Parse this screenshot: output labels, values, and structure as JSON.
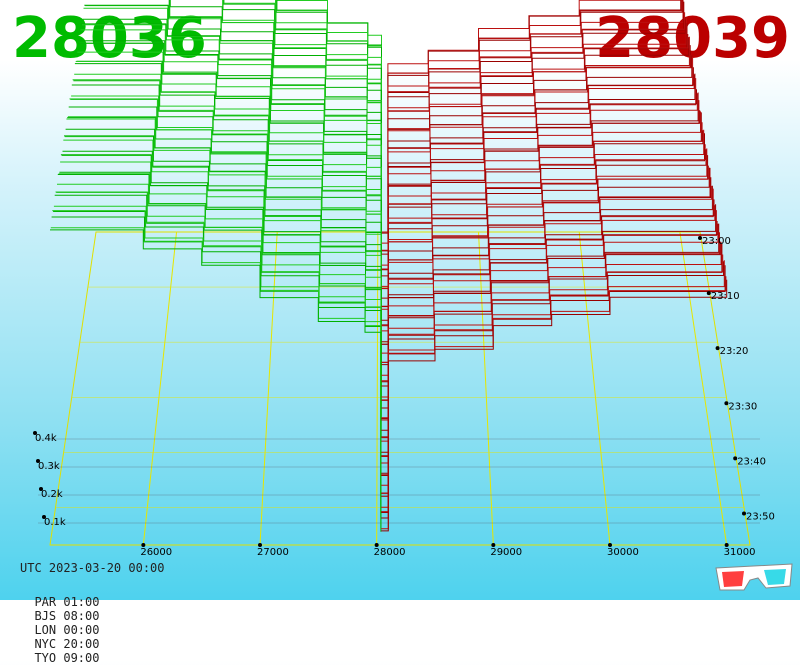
{
  "header": {
    "bid_price": "28036",
    "ask_price": "28039",
    "bid_color": "#00bb00",
    "ask_color": "#bb0000"
  },
  "footer": {
    "utc_label": "UTC 2023-03-20 00:00",
    "zones": [
      "PAR 01:00",
      "BJS 08:00",
      "LON 00:00",
      "NYC 20:00",
      "TYO 09:00"
    ]
  },
  "icons": {
    "glasses": "3d-glasses-icon"
  },
  "chart_data": {
    "type": "area",
    "x_ticks": [
      26000,
      27000,
      28000,
      29000,
      30000,
      31000
    ],
    "x_tick_labels": [
      "26000",
      "27000",
      "28000",
      "29000",
      "30000",
      "31000"
    ],
    "depth_ticks": [
      "0.1k",
      "0.2k",
      "0.3k",
      "0.4k"
    ],
    "time_ticks": [
      "23:00",
      "23:10",
      "23:20",
      "23:30",
      "23:40",
      "23:50"
    ],
    "xlim": [
      25200,
      31200
    ],
    "grid": true,
    "series": [
      {
        "side": "bid",
        "color": "#00bb00",
        "x": [
          25200,
          26000,
          26500,
          27000,
          27500,
          27900,
          28036
        ],
        "y": [
          430,
          400,
          380,
          330,
          300,
          280,
          0
        ]
      },
      {
        "side": "ask",
        "color": "#aa0000",
        "x": [
          28039,
          28100,
          28500,
          29000,
          29500,
          30000,
          31000
        ],
        "y": [
          0,
          240,
          260,
          290,
          310,
          330,
          360
        ]
      }
    ]
  }
}
